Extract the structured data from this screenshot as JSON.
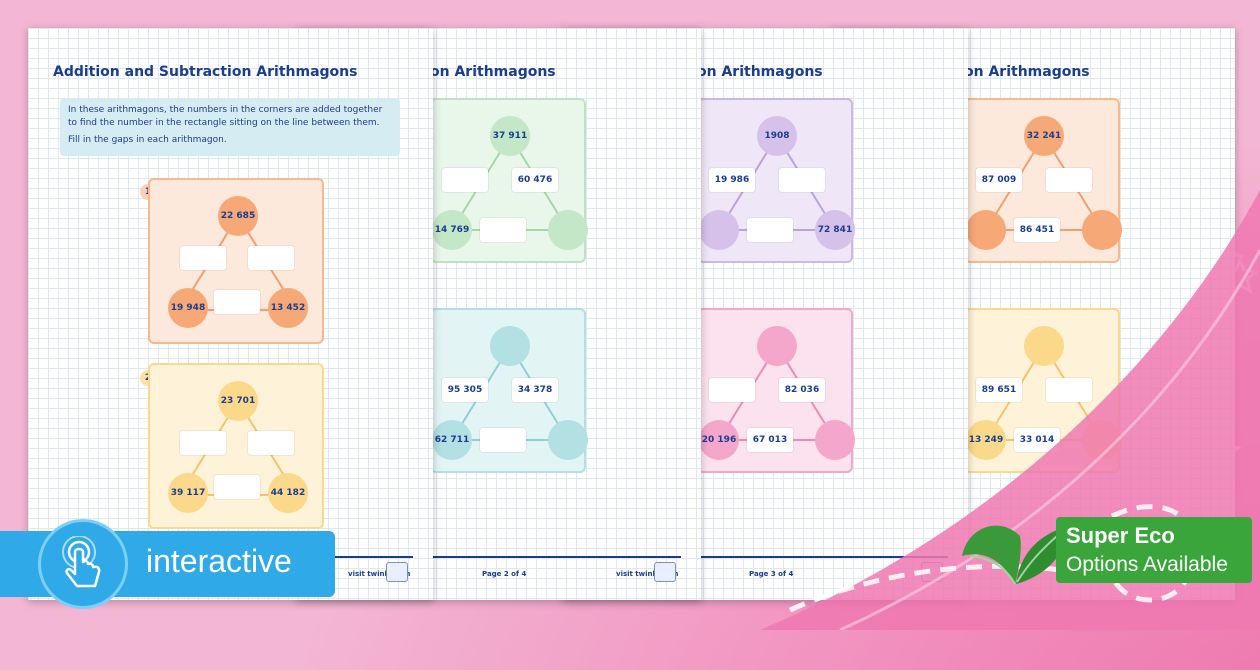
{
  "worksheet": {
    "title": "Addition and Subtraction Arithmagons",
    "partial_title": "on Arithmagons",
    "instructions": [
      "In these arithmagons, the numbers in the corners are added together to find the number in the rectangle sitting on the line between them.",
      "Fill in the gaps in each arithmagon."
    ],
    "footer_site": "visit twinkl.com",
    "page_labels": [
      "Page 2 of 4",
      "Page 3 of 4"
    ]
  },
  "page1": {
    "panels": [
      {
        "badge": "1",
        "top": "22 685",
        "left": "19 948",
        "right": "13 452",
        "box_left": "",
        "box_right": "",
        "box_bottom": ""
      },
      {
        "badge": "2",
        "top": "23 701",
        "left": "39 117",
        "right": "44 182",
        "box_left": "",
        "box_right": "",
        "box_bottom": ""
      }
    ]
  },
  "page2": {
    "panels": [
      {
        "top": "37 911",
        "left": "14 769",
        "right": "",
        "box_left": "",
        "box_right": "60 476",
        "box_bottom": ""
      },
      {
        "top": "",
        "left": "62 711",
        "right": "",
        "box_left": "95 305",
        "box_right": "34 378",
        "box_bottom": ""
      }
    ]
  },
  "page3": {
    "panels": [
      {
        "top": "1908",
        "left": "",
        "right": "72 841",
        "box_left": "19 986",
        "box_right": "",
        "box_bottom": ""
      },
      {
        "top": "",
        "left": "20 196",
        "right": "",
        "box_left": "",
        "box_right": "82 036",
        "box_bottom": "67 013"
      }
    ]
  },
  "page4": {
    "panels": [
      {
        "top": "32 241",
        "left": "",
        "right": "",
        "box_left": "87 009",
        "box_right": "",
        "box_bottom": "86 451"
      },
      {
        "top": "",
        "left": "13 249",
        "right": "",
        "box_left": "89 651",
        "box_right": "",
        "box_bottom": "33 014"
      }
    ]
  },
  "overlay": {
    "interactive_label": "interactive",
    "eco_title": "Super Eco",
    "eco_subtitle": "Options Available"
  },
  "colors": {
    "background": "#f3b6d3",
    "accent_blue": "#30a9e8",
    "eco_green": "#3aa53a",
    "title_navy": "#1b3d8f"
  }
}
